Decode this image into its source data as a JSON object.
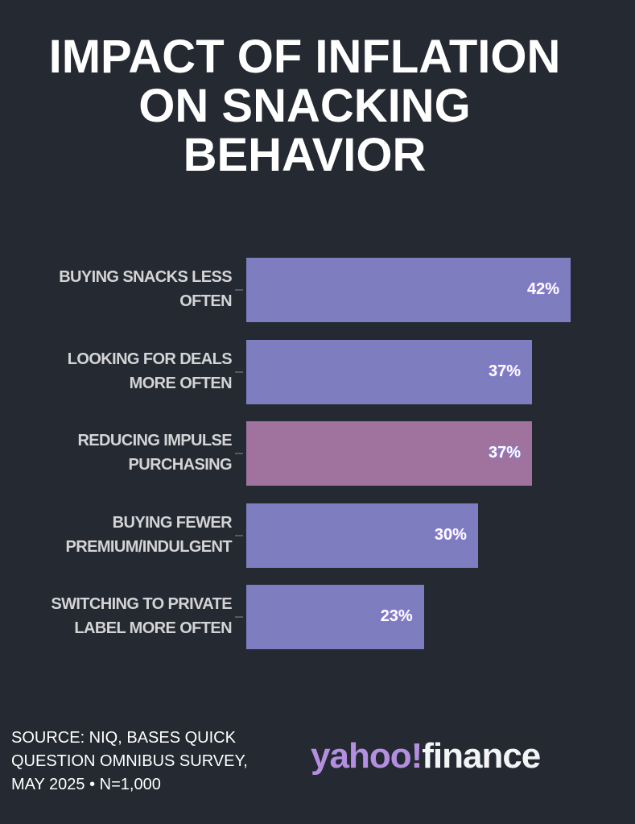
{
  "chart_data": {
    "type": "bar",
    "orientation": "horizontal",
    "title": "IMPACT OF INFLATION ON SNACKING BEHAVIOR",
    "title_lines": [
      "IMPACT OF INFLATION",
      "ON SNACKING",
      "BEHAVIOR"
    ],
    "categories": [
      [
        "BUYING SNACKS LESS",
        "OFTEN"
      ],
      [
        "LOOKING FOR DEALS",
        "MORE OFTEN"
      ],
      [
        "REDUCING IMPULSE",
        "PURCHASING"
      ],
      [
        "BUYING FEWER",
        "PREMIUM/INDULGENT"
      ],
      [
        "SWITCHING TO PRIVATE",
        "LABEL MORE OFTEN"
      ]
    ],
    "values": [
      42,
      37,
      37,
      30,
      23
    ],
    "value_labels": [
      "42%",
      "37%",
      "37%",
      "30%",
      "23%"
    ],
    "highlight_index": 2,
    "colors": {
      "bar": "#7d7dbf",
      "highlight": "#a0739f",
      "background": "#242932"
    },
    "xlim": [
      0,
      42
    ],
    "xlabel": "",
    "ylabel": ""
  },
  "footer": {
    "source_lines": [
      "SOURCE: NIQ, BASES QUICK",
      "QUESTION OMNIBUS SURVEY,",
      "MAY 2025 • N=1,000"
    ],
    "logo_yahoo": "yahoo!",
    "logo_finance": "finance"
  }
}
